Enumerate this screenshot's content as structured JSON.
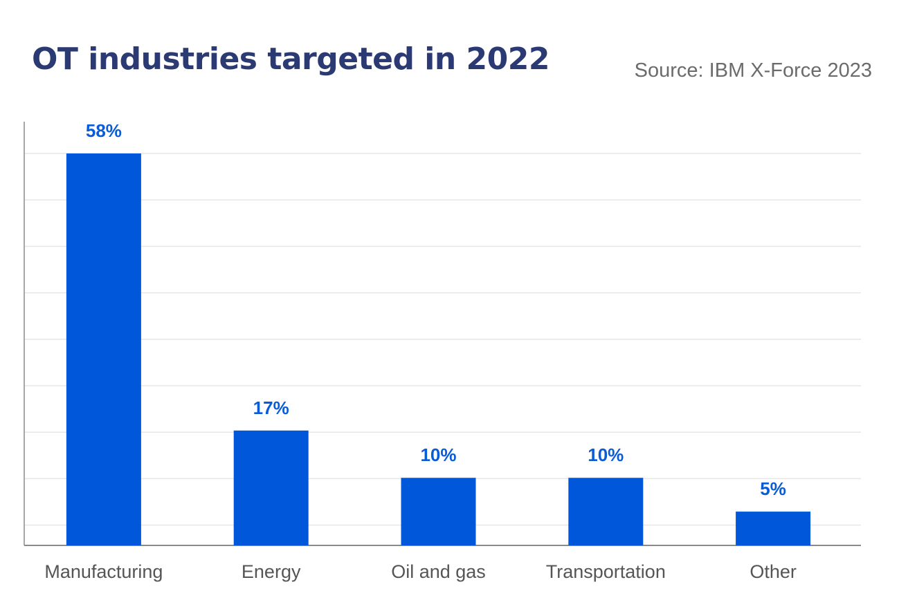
{
  "header": {
    "title": "OT industries targeted in 2022",
    "source": "Source: IBM X-Force 2023"
  },
  "chart_data": {
    "type": "bar",
    "title": "OT industries targeted in 2022",
    "categories": [
      "Manufacturing",
      "Energy",
      "Oil and gas",
      "Transportation",
      "Other"
    ],
    "values": [
      58,
      17,
      10,
      10,
      5
    ],
    "data_labels": [
      "58%",
      "17%",
      "10%",
      "10%",
      "5%"
    ],
    "xlabel": "",
    "ylabel": "",
    "grid": true,
    "legend": "none",
    "colors": {
      "bar": "#0057d9",
      "label": "#0a5bd6",
      "grid": "#e6e6e6",
      "axis": "#8a8a8a",
      "category_text": "#555555"
    }
  }
}
